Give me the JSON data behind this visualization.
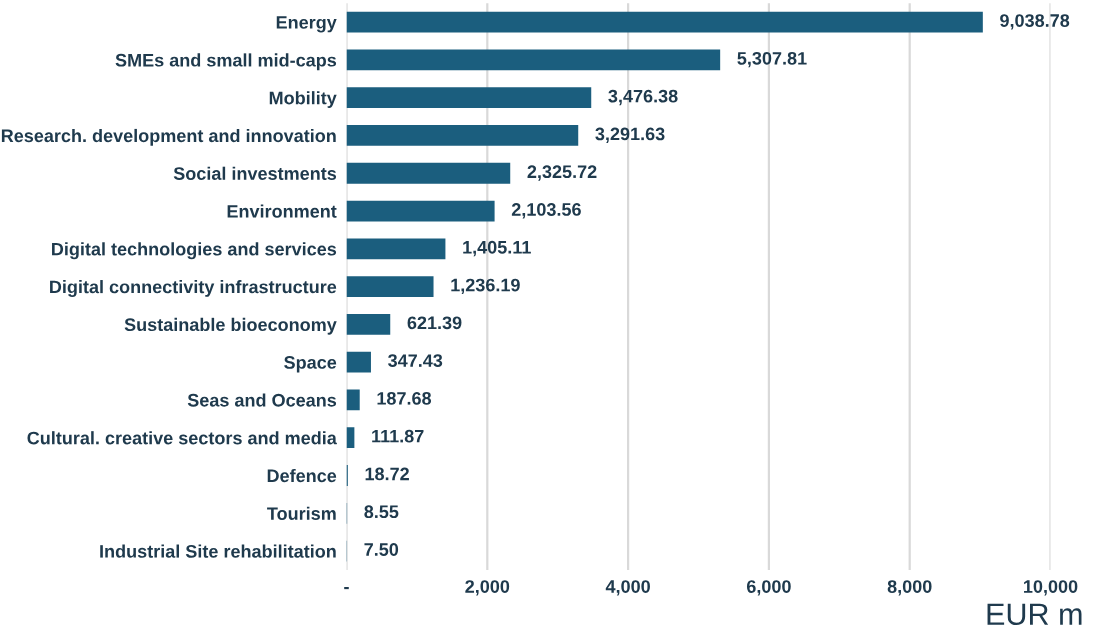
{
  "chart_data": {
    "type": "bar",
    "orientation": "horizontal",
    "categories": [
      "Energy",
      "SMEs and small mid-caps",
      "Mobility",
      "Research. development and innovation",
      "Social investments",
      "Environment",
      "Digital technologies and services",
      "Digital connectivity infrastructure",
      "Sustainable bioeconomy",
      "Space",
      "Seas and Oceans",
      "Cultural. creative sectors and media",
      "Defence",
      "Tourism",
      "Industrial Site rehabilitation"
    ],
    "values": [
      9038.78,
      5307.81,
      3476.38,
      3291.63,
      2325.72,
      2103.56,
      1405.11,
      1236.19,
      621.39,
      347.43,
      187.68,
      111.87,
      18.72,
      8.55,
      7.5
    ],
    "value_labels": [
      "9,038.78",
      "5,307.81",
      "3,476.38",
      "3,291.63",
      "2,325.72",
      "2,103.56",
      "1,405.11",
      "1,236.19",
      "621.39",
      "347.43",
      "187.68",
      "111.87",
      "18.72",
      "8.55",
      "7.50"
    ],
    "color": "#1b5e7e",
    "xlabel": "EUR m",
    "xlim": [
      0,
      10000
    ],
    "xticks": [
      {
        "value": 0,
        "label": "-"
      },
      {
        "value": 2000,
        "label": "2,000"
      },
      {
        "value": 4000,
        "label": "4,000"
      },
      {
        "value": 6000,
        "label": "6,000"
      },
      {
        "value": 8000,
        "label": "8,000"
      },
      {
        "value": 10000,
        "label": "10,000"
      }
    ],
    "grid": "x"
  }
}
